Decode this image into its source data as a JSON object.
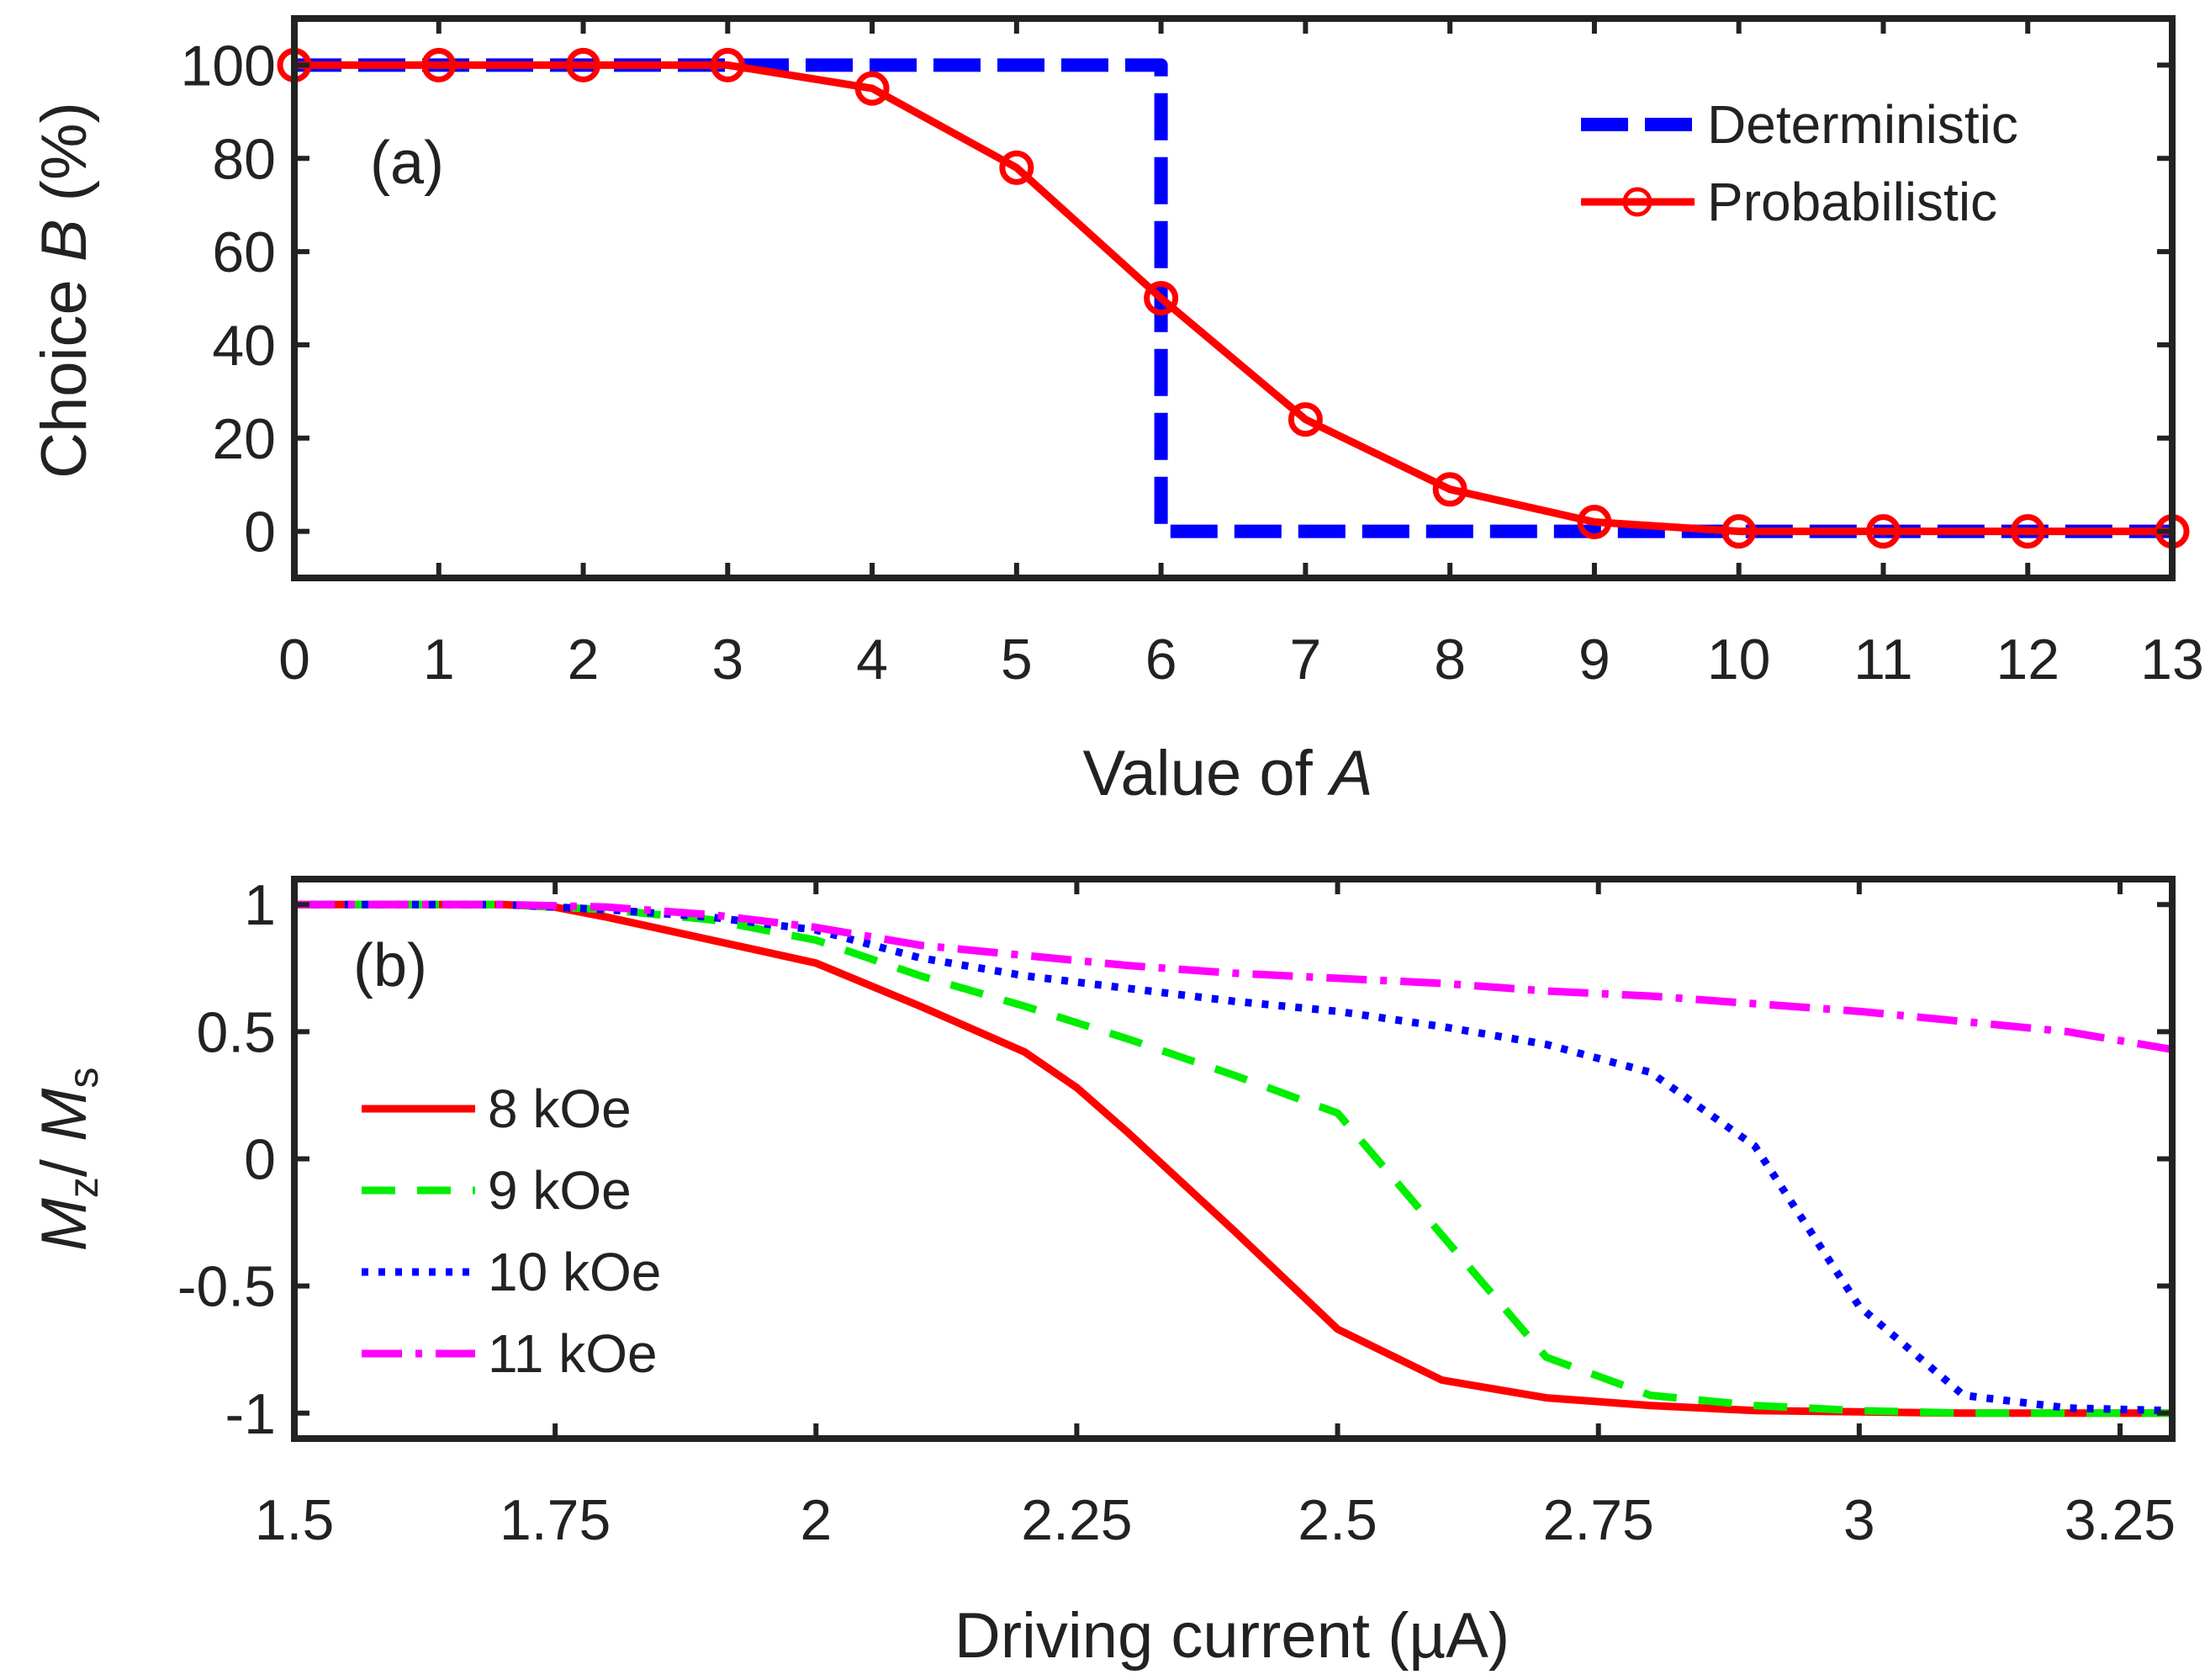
{
  "chart_data": [
    {
      "panel_label": "(a)",
      "type": "line",
      "xlabel": {
        "prefix": "Value of ",
        "italic": "A"
      },
      "ylabel": {
        "prefix": "Choice ",
        "italic": "B",
        "suffix": " (%)"
      },
      "xlim": [
        0,
        13
      ],
      "ylim": [
        -10,
        110
      ],
      "xticks": [
        0,
        1,
        2,
        3,
        4,
        5,
        6,
        7,
        8,
        9,
        10,
        11,
        12,
        13
      ],
      "xtick_labels": [
        "0",
        "1",
        "2",
        "3",
        "4",
        "5",
        "6",
        "7",
        "8",
        "9",
        "10",
        "11",
        "12",
        "13"
      ],
      "yticks": [
        0,
        20,
        40,
        60,
        80,
        100
      ],
      "ytick_labels": [
        "0",
        "20",
        "40",
        "60",
        "80",
        "100"
      ],
      "legend_position": "top-right",
      "series": [
        {
          "name": "Deterministic",
          "color": "#0000ff",
          "style": "dashed",
          "x": [
            0,
            6,
            6,
            13
          ],
          "y": [
            100,
            100,
            0,
            0
          ]
        },
        {
          "name": "Probabilistic",
          "color": "#ff0000",
          "style": "solid",
          "marker": "circle",
          "x": [
            0,
            1,
            2,
            3,
            4,
            5,
            6,
            7,
            8,
            9,
            10,
            11,
            12,
            13
          ],
          "y": [
            100,
            100,
            100,
            100,
            95,
            78,
            50,
            24,
            9,
            2,
            0,
            0,
            0,
            0
          ]
        }
      ]
    },
    {
      "panel_label": "(b)",
      "type": "line",
      "xlabel": "Driving current (µA)",
      "ylabel": {
        "m": "M",
        "z": "z",
        "slash": "/ ",
        "ms": "M",
        "s": "s"
      },
      "xlim": [
        1.5,
        3.3
      ],
      "ylim": [
        -1.1,
        1.1
      ],
      "xticks": [
        1.5,
        1.75,
        2,
        2.25,
        2.5,
        2.75,
        3,
        3.25
      ],
      "xtick_labels": [
        "1.5",
        "1.75",
        "2",
        "2.25",
        "2.5",
        "2.75",
        "3",
        "3.25"
      ],
      "yticks": [
        -1,
        -0.5,
        0,
        0.5,
        1
      ],
      "ytick_labels": [
        "-1",
        "-0.5",
        "0",
        "0.5",
        "1"
      ],
      "legend_position": "left",
      "series": [
        {
          "name": "8 kOe",
          "color": "#ff0000",
          "style": "solid",
          "x": [
            1.5,
            1.6,
            1.7,
            1.75,
            1.8,
            1.9,
            2.0,
            2.1,
            2.2,
            2.25,
            2.3,
            2.4,
            2.5,
            2.6,
            2.7,
            2.8,
            2.9,
            3.0,
            3.1,
            3.2,
            3.3
          ],
          "y": [
            1,
            1,
            1,
            0.99,
            0.95,
            0.86,
            0.77,
            0.6,
            0.42,
            0.28,
            0.1,
            -0.28,
            -0.67,
            -0.87,
            -0.94,
            -0.97,
            -0.99,
            -0.995,
            -1,
            -1,
            -1
          ]
        },
        {
          "name": "9 kOe",
          "color": "#00ee00",
          "style": "dashed",
          "x": [
            1.5,
            1.6,
            1.7,
            1.8,
            1.9,
            2.0,
            2.1,
            2.2,
            2.3,
            2.4,
            2.5,
            2.6,
            2.7,
            2.8,
            2.9,
            3.0,
            3.1,
            3.2,
            3.3
          ],
          "y": [
            1,
            1,
            1,
            0.98,
            0.94,
            0.86,
            0.72,
            0.6,
            0.47,
            0.33,
            0.18,
            -0.3,
            -0.78,
            -0.93,
            -0.97,
            -0.99,
            -1,
            -1,
            -1
          ]
        },
        {
          "name": "10 kOe",
          "color": "#0000ff",
          "style": "dotted",
          "x": [
            1.5,
            1.6,
            1.7,
            1.8,
            1.9,
            2.0,
            2.1,
            2.2,
            2.3,
            2.4,
            2.5,
            2.6,
            2.7,
            2.8,
            2.9,
            3.0,
            3.1,
            3.2,
            3.3
          ],
          "y": [
            1,
            1,
            1,
            0.98,
            0.95,
            0.9,
            0.79,
            0.72,
            0.67,
            0.62,
            0.58,
            0.52,
            0.45,
            0.34,
            0.05,
            -0.58,
            -0.93,
            -0.98,
            -0.99
          ]
        },
        {
          "name": "11 kOe",
          "color": "#ff00ff",
          "style": "dashdot",
          "x": [
            1.5,
            1.6,
            1.7,
            1.8,
            1.9,
            2.0,
            2.1,
            2.2,
            2.3,
            2.4,
            2.5,
            2.6,
            2.7,
            2.8,
            2.9,
            3.0,
            3.1,
            3.2,
            3.3
          ],
          "y": [
            1,
            1,
            1,
            0.99,
            0.96,
            0.91,
            0.84,
            0.8,
            0.76,
            0.73,
            0.71,
            0.69,
            0.66,
            0.64,
            0.61,
            0.58,
            0.54,
            0.5,
            0.43
          ]
        }
      ]
    }
  ]
}
